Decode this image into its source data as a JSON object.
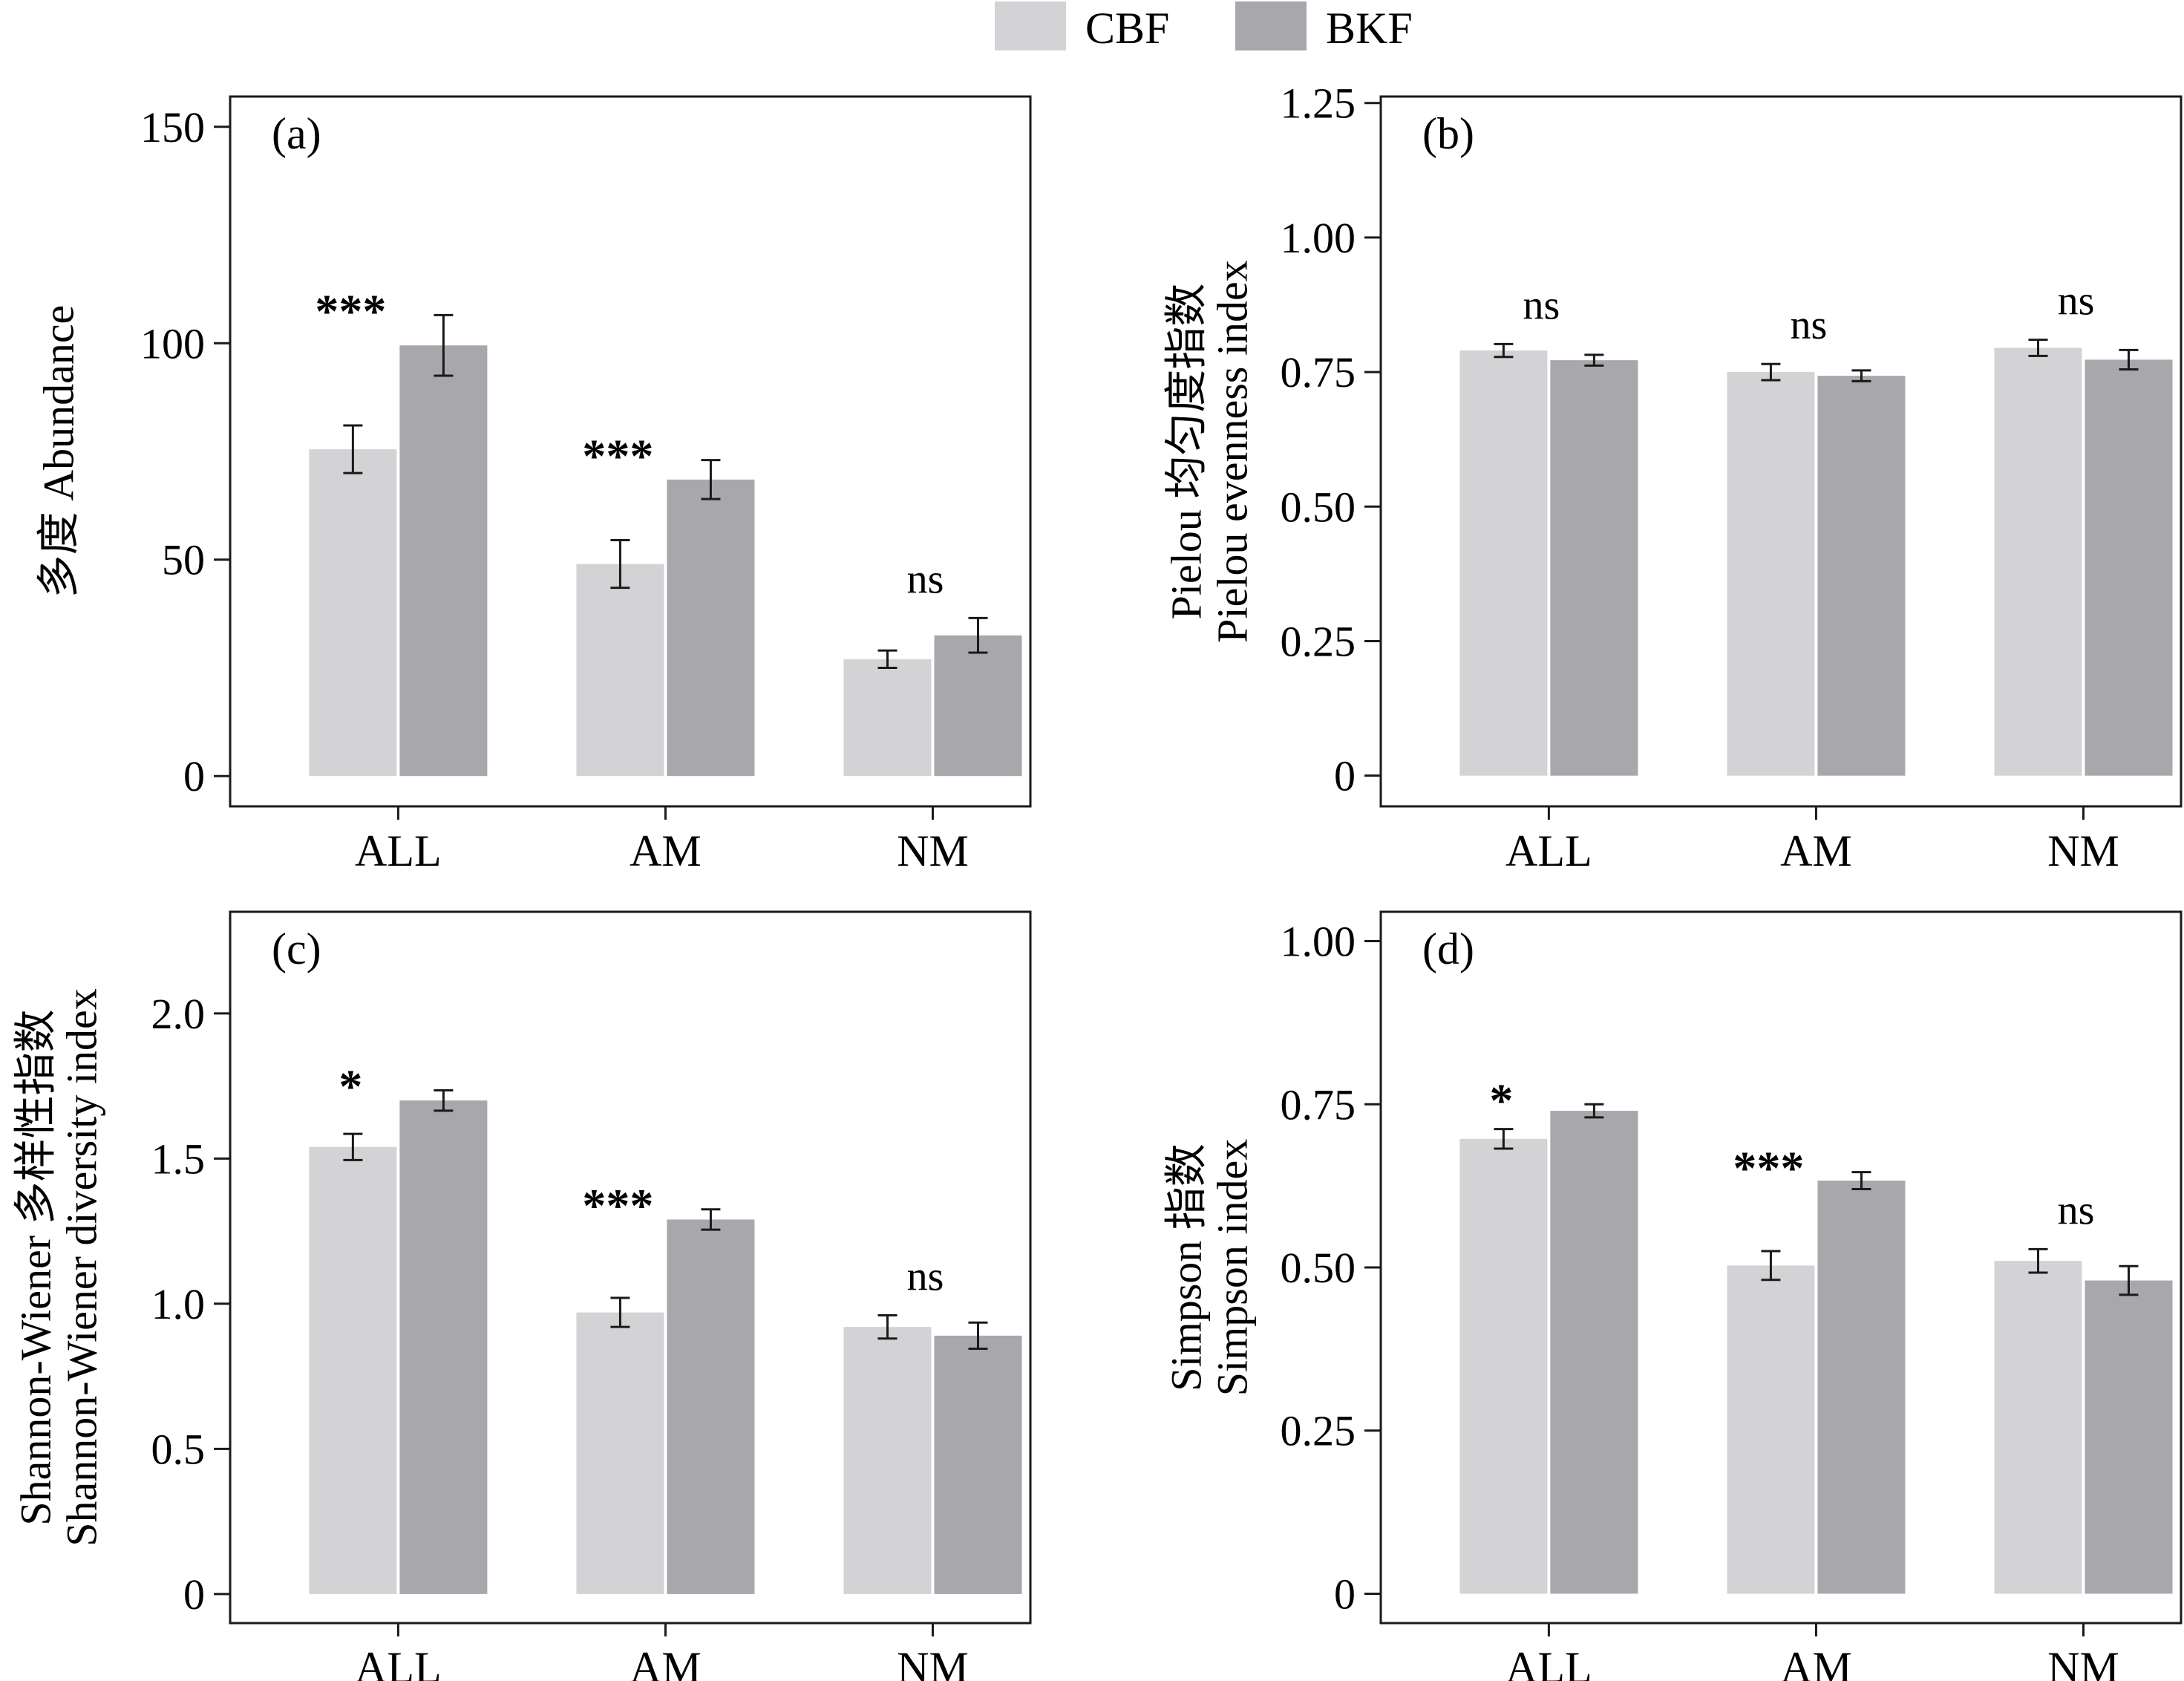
{
  "legend": [
    {
      "label": "CBF",
      "color": "#d3d3d5"
    },
    {
      "label": "BKF",
      "color": "#a8a7ac"
    }
  ],
  "colors": {
    "cbf": "#d3d3d5",
    "bkf": "#a8a7ac",
    "axis": "#1a1a1a"
  },
  "chart_data": [
    {
      "type": "bar",
      "panel_label": "(a)",
      "ylabel_lines": [
        "多度 Abundance"
      ],
      "categories": [
        "ALL",
        "AM",
        "NM"
      ],
      "ylim": [
        -7,
        157
      ],
      "yticks": [
        {
          "value": 0,
          "label": "0"
        },
        {
          "value": 50,
          "label": "50"
        },
        {
          "value": 100,
          "label": "100"
        },
        {
          "value": 150,
          "label": "150"
        }
      ],
      "series": [
        {
          "name": "CBF",
          "values": [
            75.5,
            49,
            27
          ],
          "errors": [
            5.5,
            5.5,
            2
          ]
        },
        {
          "name": "BKF",
          "values": [
            99.5,
            68.5,
            32.5
          ],
          "errors": [
            7,
            4.5,
            4
          ]
        }
      ],
      "significance": [
        "***",
        "***",
        "ns"
      ]
    },
    {
      "type": "bar",
      "panel_label": "(b)",
      "ylabel_lines": [
        "Pielou 均匀度指数",
        "Pielou evenness index"
      ],
      "categories": [
        "ALL",
        "AM",
        "NM"
      ],
      "ylim": [
        -0.057,
        1.262
      ],
      "yticks": [
        {
          "value": 0,
          "label": "0"
        },
        {
          "value": 0.25,
          "label": "0.25"
        },
        {
          "value": 0.5,
          "label": "0.50"
        },
        {
          "value": 0.75,
          "label": "0.75"
        },
        {
          "value": 1.0,
          "label": "1.00"
        },
        {
          "value": 1.25,
          "label": "1.25"
        }
      ],
      "series": [
        {
          "name": "CBF",
          "values": [
            0.79,
            0.75,
            0.795
          ],
          "errors": [
            0.012,
            0.015,
            0.015
          ]
        },
        {
          "name": "BKF",
          "values": [
            0.772,
            0.743,
            0.773
          ],
          "errors": [
            0.01,
            0.01,
            0.018
          ]
        }
      ],
      "significance": [
        "ns",
        "ns",
        "ns"
      ]
    },
    {
      "type": "bar",
      "panel_label": "(c)",
      "ylabel_lines": [
        "Shannon-Wiener 多样性指数",
        "Shannon-Wiener diversity index"
      ],
      "categories": [
        "ALL",
        "AM",
        "NM"
      ],
      "ylim": [
        -0.1,
        2.35
      ],
      "yticks": [
        {
          "value": 0,
          "label": "0"
        },
        {
          "value": 0.5,
          "label": "0.5"
        },
        {
          "value": 1.0,
          "label": "1.0"
        },
        {
          "value": 1.5,
          "label": "1.5"
        },
        {
          "value": 2.0,
          "label": "2.0"
        }
      ],
      "series": [
        {
          "name": "CBF",
          "values": [
            1.54,
            0.97,
            0.92
          ],
          "errors": [
            0.045,
            0.05,
            0.04
          ]
        },
        {
          "name": "BKF",
          "values": [
            1.7,
            1.29,
            0.89
          ],
          "errors": [
            0.035,
            0.035,
            0.045
          ]
        }
      ],
      "significance": [
        "*",
        "***",
        "ns"
      ]
    },
    {
      "type": "bar",
      "panel_label": "(d)",
      "ylabel_lines": [
        "Simpson 指数",
        "Simpson index"
      ],
      "categories": [
        "ALL",
        "AM",
        "NM"
      ],
      "ylim": [
        -0.045,
        1.045
      ],
      "yticks": [
        {
          "value": 0,
          "label": "0"
        },
        {
          "value": 0.25,
          "label": "0.25"
        },
        {
          "value": 0.5,
          "label": "0.50"
        },
        {
          "value": 0.75,
          "label": "0.75"
        },
        {
          "value": 1.0,
          "label": "1.00"
        }
      ],
      "series": [
        {
          "name": "CBF",
          "values": [
            0.697,
            0.503,
            0.51
          ],
          "errors": [
            0.015,
            0.022,
            0.018
          ]
        },
        {
          "name": "BKF",
          "values": [
            0.74,
            0.633,
            0.48
          ],
          "errors": [
            0.01,
            0.013,
            0.022
          ]
        }
      ],
      "significance": [
        "*",
        "***",
        "ns"
      ]
    }
  ]
}
